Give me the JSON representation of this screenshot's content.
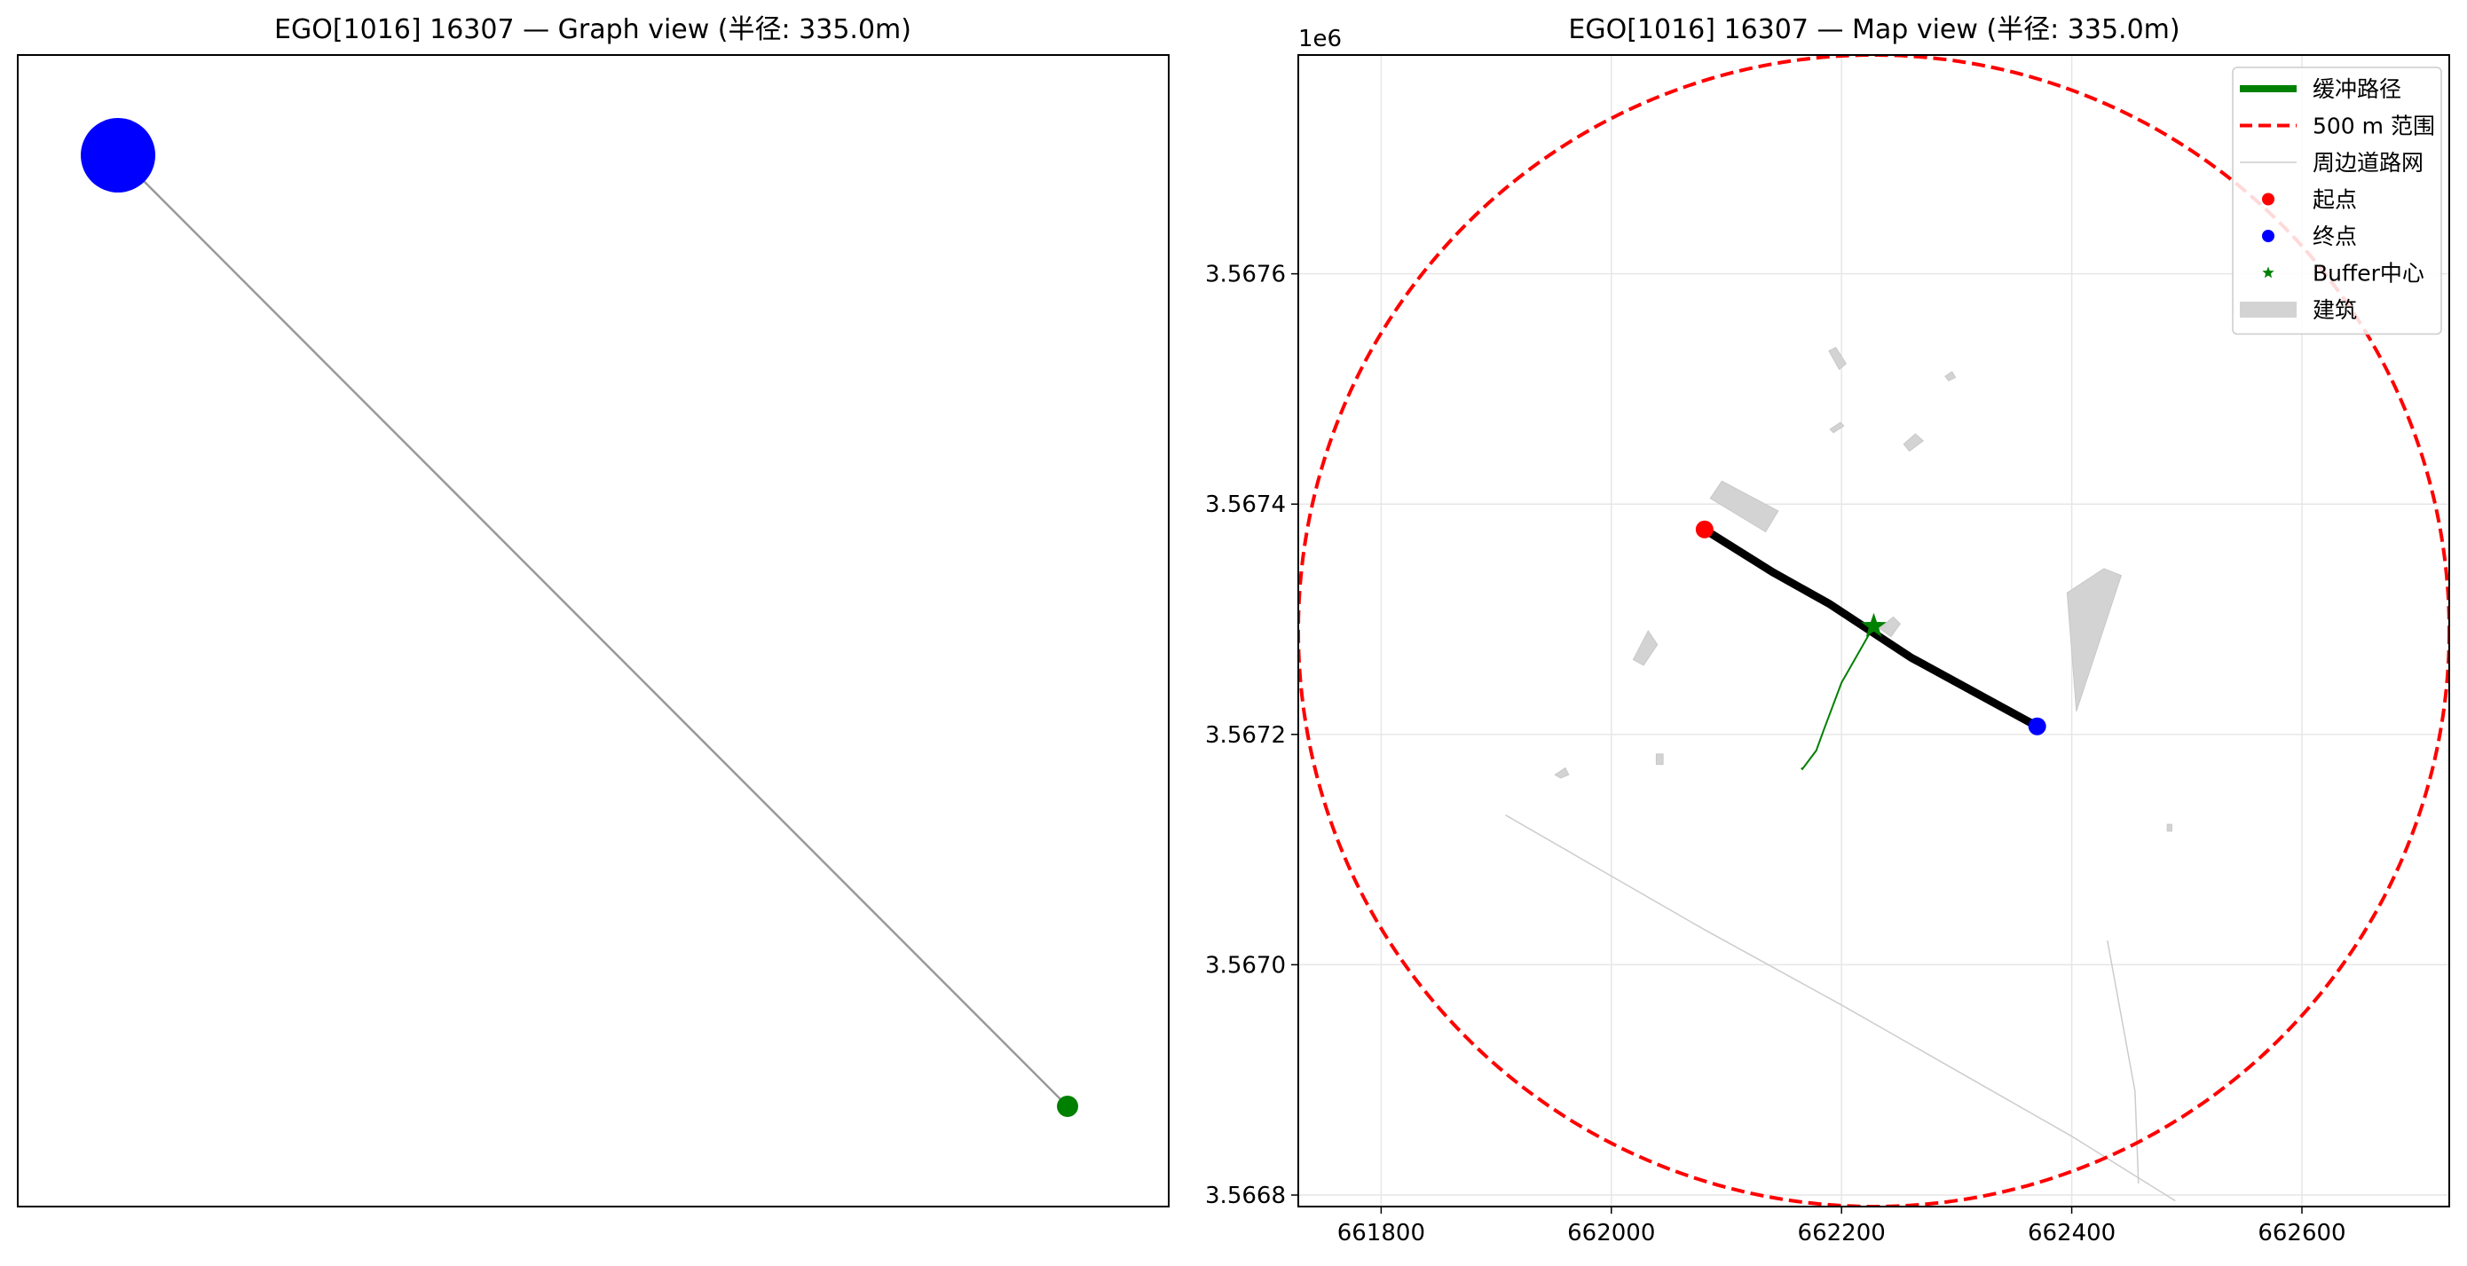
{
  "chart_data": [
    {
      "type": "network",
      "title": "EGO[1016] 16307 — Graph view (半径: 335.0m)",
      "nodes": [
        {
          "id": "ego",
          "x": 0.0,
          "y": 1.0,
          "color": "#0000ff",
          "size": "large"
        },
        {
          "id": "neighbor",
          "x": 1.0,
          "y": 0.0,
          "color": "#008000",
          "size": "small"
        }
      ],
      "edges": [
        {
          "source": "ego",
          "target": "neighbor",
          "color": "#999999"
        }
      ]
    },
    {
      "type": "map",
      "title": "EGO[1016] 16307 — Map view (半径: 335.0m)",
      "x_ticks": [
        "661800",
        "662000",
        "662200",
        "662400",
        "662600"
      ],
      "y_ticks": [
        "3.5668",
        "3.5670",
        "3.5672",
        "3.5674",
        "3.5676"
      ],
      "y_offset_label": "1e6",
      "xlim": [
        661728,
        662728
      ],
      "ylim": [
        3566790,
        3567790
      ],
      "grid": true,
      "legend_position": "top-right",
      "legend": [
        {
          "label": "缓冲路径",
          "style": "thick-line",
          "color": "#008000"
        },
        {
          "label": "500 m 范围",
          "style": "dashed-line",
          "color": "#ff0000"
        },
        {
          "label": "周边道路网",
          "style": "thin-line",
          "color": "#cccccc"
        },
        {
          "label": "起点",
          "style": "dot",
          "color": "#ff0000"
        },
        {
          "label": "终点",
          "style": "dot",
          "color": "#0000ff"
        },
        {
          "label": "Buffer中心",
          "style": "star",
          "color": "#008000"
        },
        {
          "label": "建筑",
          "style": "patch",
          "color": "#d3d3d3"
        }
      ],
      "circle": {
        "center": [
          662228,
          3567290
        ],
        "radius": 500,
        "color": "#ff0000"
      },
      "main_route": {
        "color": "#000000",
        "points": [
          [
            662081,
            3567378
          ],
          [
            662140,
            3567341
          ],
          [
            662190,
            3567313
          ],
          [
            662260,
            3567267
          ],
          [
            662370,
            3567207
          ]
        ]
      },
      "start_point": [
        662081,
        3567378
      ],
      "end_point": [
        662370,
        3567207
      ],
      "buffer_center": [
        662228,
        3567294
      ],
      "buffer_path": {
        "color": "#008000",
        "points": [
          [
            662228,
            3567294
          ],
          [
            662200,
            3567245
          ],
          [
            662185,
            3567205
          ],
          [
            662178,
            3567186
          ],
          [
            662166,
            3567170
          ],
          [
            662165,
            3567171
          ]
        ]
      },
      "road_network": [
        [
          [
            661908,
            3567130
          ],
          [
            662000,
            3567077
          ],
          [
            662080,
            3567031
          ],
          [
            662200,
            3566965
          ],
          [
            662300,
            3566908
          ],
          [
            662400,
            3566851
          ],
          [
            662490,
            3566795
          ]
        ],
        [
          [
            662431,
            3567021
          ],
          [
            662455,
            3566890
          ],
          [
            662458,
            3566810
          ]
        ]
      ],
      "buildings": [
        [
          [
            662145,
            3567394
          ],
          [
            662134,
            3567376
          ],
          [
            662086,
            3567405
          ],
          [
            662096,
            3567420
          ]
        ],
        [
          [
            662396,
            3567323
          ],
          [
            662428,
            3567344
          ],
          [
            662443,
            3567338
          ],
          [
            662404,
            3567220
          ]
        ],
        [
          [
            662245,
            3567302
          ],
          [
            662233,
            3567292
          ],
          [
            662243,
            3567285
          ],
          [
            662251,
            3567296
          ]
        ],
        [
          [
            662204,
            3567522
          ],
          [
            662198,
            3567517
          ],
          [
            662189,
            3567533
          ],
          [
            662195,
            3567536
          ]
        ],
        [
          [
            662199,
            3567471
          ],
          [
            662202,
            3567468
          ],
          [
            662193,
            3567462
          ],
          [
            662190,
            3567465
          ]
        ],
        [
          [
            662264,
            3567461
          ],
          [
            662271,
            3567455
          ],
          [
            662259,
            3567446
          ],
          [
            662254,
            3567452
          ]
        ],
        [
          [
            662299,
            3567510
          ],
          [
            662296,
            3567515
          ],
          [
            662290,
            3567511
          ],
          [
            662293,
            3567507
          ]
        ],
        [
          [
            662032,
            3567290
          ],
          [
            662040,
            3567278
          ],
          [
            662028,
            3567260
          ],
          [
            662019,
            3567265
          ]
        ],
        [
          [
            662039,
            3567183
          ],
          [
            662045,
            3567183
          ],
          [
            662045,
            3567174
          ],
          [
            662039,
            3567174
          ]
        ],
        [
          [
            661951,
            3567165
          ],
          [
            661956,
            3567162
          ],
          [
            661963,
            3567165
          ],
          [
            661960,
            3567171
          ]
        ],
        [
          [
            662483,
            3567122
          ],
          [
            662487,
            3567122
          ],
          [
            662487,
            3567116
          ],
          [
            662483,
            3567116
          ]
        ]
      ]
    }
  ]
}
